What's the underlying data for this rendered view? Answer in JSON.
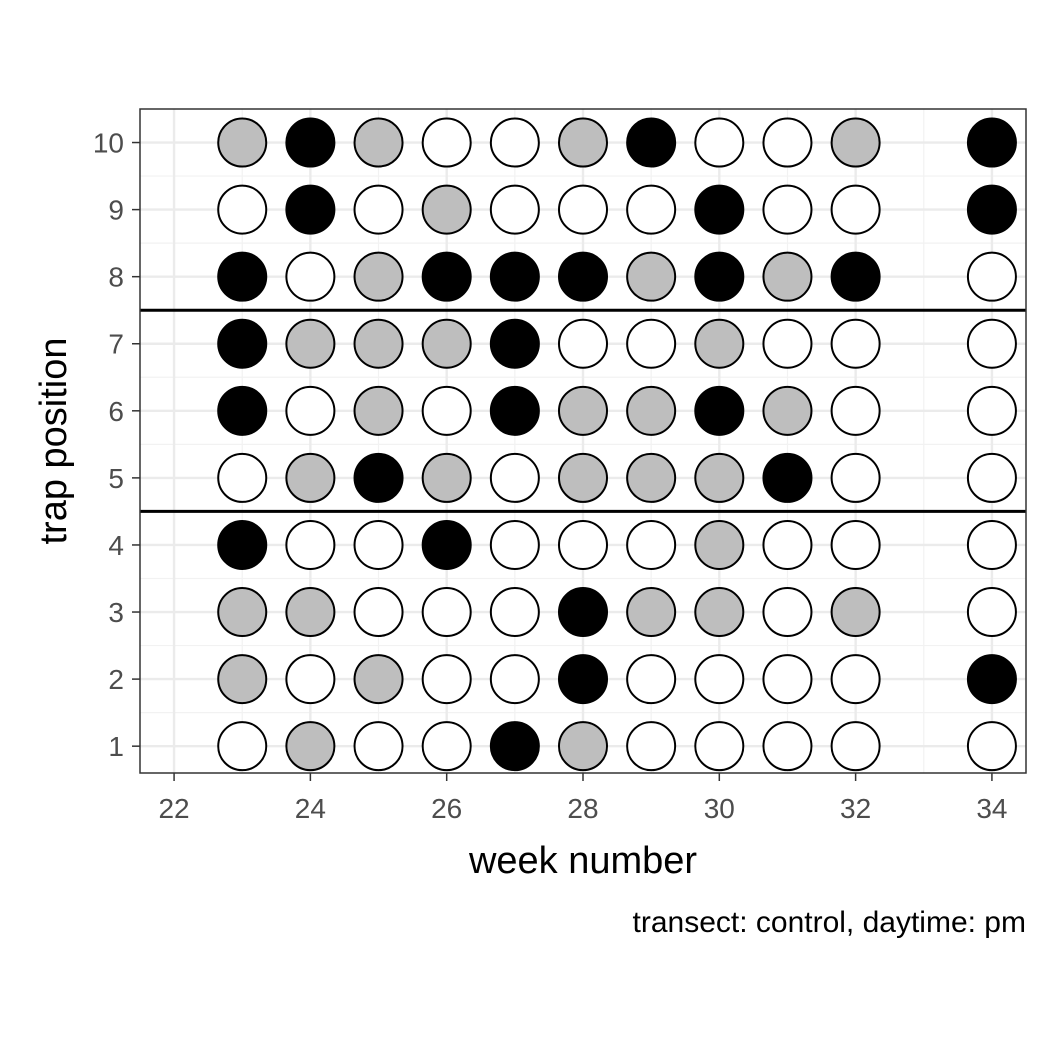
{
  "chart_data": {
    "type": "scatter",
    "xlabel": "week number",
    "ylabel": "trap position",
    "caption": "transect: control, daytime: pm",
    "xlim": [
      21.5,
      34.5
    ],
    "ylim": [
      0.6,
      10.5
    ],
    "x_ticks": [
      22,
      24,
      26,
      28,
      30,
      32,
      34
    ],
    "y_ticks": [
      1,
      2,
      3,
      4,
      5,
      6,
      7,
      8,
      9,
      10
    ],
    "x_tick_labels": [
      "22",
      "24",
      "26",
      "28",
      "30",
      "32",
      "34"
    ],
    "y_tick_labels": [
      "1",
      "2",
      "3",
      "4",
      "5",
      "6",
      "7",
      "8",
      "9",
      "10"
    ],
    "reference_lines_y": [
      4.5,
      7.5
    ],
    "grid": true,
    "weeks": [
      23,
      24,
      25,
      26,
      27,
      28,
      29,
      30,
      31,
      32,
      34
    ],
    "fill_colors": {
      "white": "#ffffff",
      "grey": "#bebebe",
      "black": "#000000"
    },
    "points_by_trap_position": {
      "10": [
        "grey",
        "black",
        "grey",
        "white",
        "white",
        "grey",
        "black",
        "white",
        "white",
        "grey",
        "black"
      ],
      "9": [
        "white",
        "black",
        "white",
        "grey",
        "white",
        "white",
        "white",
        "black",
        "white",
        "white",
        "black"
      ],
      "8": [
        "black",
        "white",
        "grey",
        "black",
        "black",
        "black",
        "grey",
        "black",
        "grey",
        "black",
        "white"
      ],
      "7": [
        "black",
        "grey",
        "grey",
        "grey",
        "black",
        "white",
        "white",
        "grey",
        "white",
        "white",
        "white"
      ],
      "6": [
        "black",
        "white",
        "grey",
        "white",
        "black",
        "grey",
        "grey",
        "black",
        "grey",
        "white",
        "white"
      ],
      "5": [
        "white",
        "grey",
        "black",
        "grey",
        "white",
        "grey",
        "grey",
        "grey",
        "black",
        "white",
        "white"
      ],
      "4": [
        "black",
        "white",
        "white",
        "black",
        "white",
        "white",
        "white",
        "grey",
        "white",
        "white",
        "white"
      ],
      "3": [
        "grey",
        "grey",
        "white",
        "white",
        "white",
        "black",
        "grey",
        "grey",
        "white",
        "grey",
        "white"
      ],
      "2": [
        "grey",
        "white",
        "grey",
        "white",
        "white",
        "black",
        "white",
        "white",
        "white",
        "white",
        "black"
      ],
      "1": [
        "white",
        "grey",
        "white",
        "white",
        "black",
        "grey",
        "white",
        "white",
        "white",
        "white",
        "white"
      ]
    }
  }
}
